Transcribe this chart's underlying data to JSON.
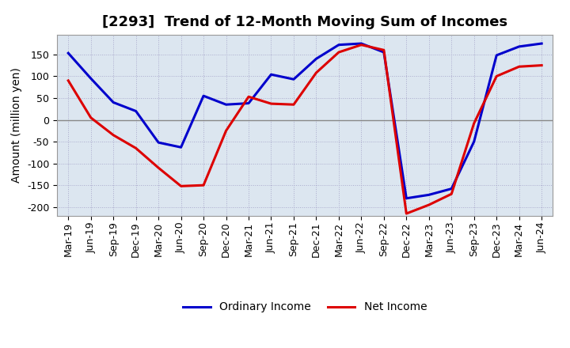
{
  "title": "[2293]  Trend of 12-Month Moving Sum of Incomes",
  "ylabel": "Amount (million yen)",
  "background_color": "#ffffff",
  "plot_background": "#dce6f0",
  "grid_color": "#aaaacc",
  "zero_line_color": "#888888",
  "tick_labels": [
    "Mar-19",
    "Jun-19",
    "Sep-19",
    "Dec-19",
    "Mar-20",
    "Jun-20",
    "Sep-20",
    "Dec-20",
    "Mar-21",
    "Jun-21",
    "Sep-21",
    "Dec-21",
    "Mar-22",
    "Jun-22",
    "Sep-22",
    "Dec-22",
    "Mar-23",
    "Jun-23",
    "Sep-23",
    "Dec-23",
    "Mar-24",
    "Jun-24"
  ],
  "ordinary_income": [
    153,
    95,
    40,
    20,
    -52,
    -63,
    55,
    35,
    38,
    104,
    93,
    140,
    172,
    175,
    155,
    -180,
    -172,
    -158,
    -50,
    148,
    168,
    175
  ],
  "net_income": [
    90,
    5,
    -35,
    -65,
    -110,
    -152,
    -150,
    -25,
    53,
    37,
    35,
    108,
    155,
    172,
    160,
    -215,
    -195,
    -170,
    -8,
    100,
    122,
    125
  ],
  "ordinary_color": "#0000cc",
  "net_color": "#dd0000",
  "ylim": [
    -220,
    195
  ],
  "yticks": [
    -200,
    -150,
    -100,
    -50,
    0,
    50,
    100,
    150
  ],
  "line_width": 2.2,
  "title_fontsize": 13,
  "legend_fontsize": 10,
  "axis_fontsize": 9,
  "ylabel_fontsize": 10
}
